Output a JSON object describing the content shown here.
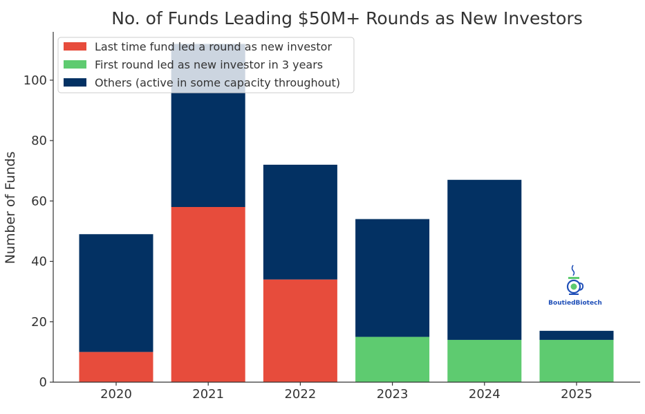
{
  "chart_data": {
    "type": "bar",
    "stacked": true,
    "title": "No. of Funds Leading $50M+ Rounds as New Investors",
    "xlabel": "",
    "ylabel": "Number of Funds",
    "categories": [
      "2020",
      "2021",
      "2022",
      "2023",
      "2024",
      "2025"
    ],
    "ylim": [
      0,
      116
    ],
    "yticks": [
      0,
      20,
      40,
      60,
      80,
      100
    ],
    "grid": false,
    "legend_position": "top-left",
    "series": [
      {
        "name": "Last time fund led a round as new investor",
        "color": "#e74c3c",
        "values": [
          10,
          58,
          34,
          0,
          0,
          0
        ]
      },
      {
        "name": "First round led as new investor in 3 years",
        "color": "#5ecb70",
        "values": [
          0,
          0,
          0,
          15,
          14,
          14
        ]
      },
      {
        "name": "Others (active in some capacity throughout)",
        "color": "#033163",
        "values": [
          39,
          54,
          38,
          39,
          53,
          3
        ]
      }
    ]
  },
  "watermark": {
    "text": "BoutiedBiotech",
    "icon": "coffee-cup-logo-icon"
  }
}
